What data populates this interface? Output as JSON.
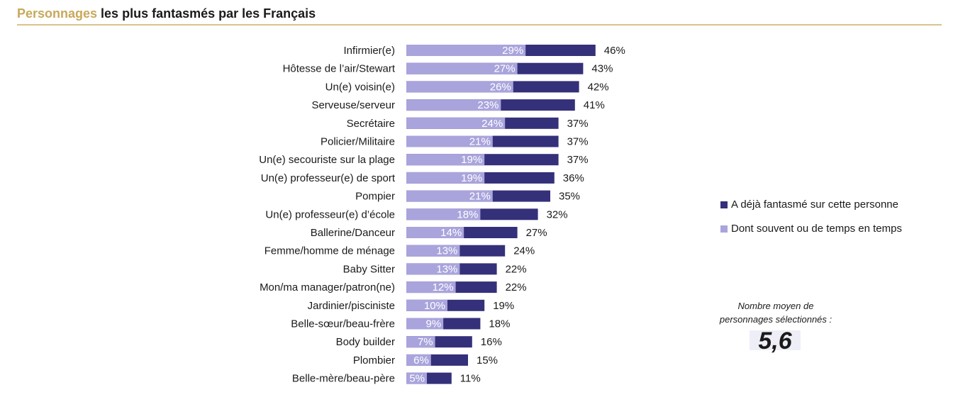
{
  "header": {
    "title_accent": "Personnages",
    "title_rest": " les plus fantasmés par les Français"
  },
  "legend": {
    "total_label": "A déjà fantasmé sur cette personne",
    "often_label": "Dont souvent ou de temps en temps"
  },
  "average": {
    "label_line1": "Nombre moyen de",
    "label_line2": "personnages sélectionnés :",
    "value": "5,6"
  },
  "colors": {
    "total": "#34307a",
    "often": "#a9a4dc",
    "title_accent": "#c8a85a"
  },
  "chart_data": {
    "type": "bar",
    "orientation": "horizontal",
    "stacked": "overlay",
    "categories": [
      "Infirmier(e)",
      "Hôtesse de l’air/Stewart",
      "Un(e) voisin(e)",
      "Serveuse/serveur",
      "Secrétaire",
      "Policier/Militaire",
      "Un(e) secouriste sur la plage",
      "Un(e) professeur(e) de sport",
      "Pompier",
      "Un(e) professeur(e) d’école",
      "Ballerine/Danceur",
      "Femme/homme de ménage",
      "Baby Sitter",
      "Mon/ma manager/patron(ne)",
      "Jardinier/pisciniste",
      "Belle-sœur/beau-frère",
      "Body builder",
      "Plombier",
      "Belle-mère/beau-père"
    ],
    "series": [
      {
        "name": "A déjà fantasmé sur cette personne",
        "values": [
          46,
          43,
          42,
          41,
          37,
          37,
          37,
          36,
          35,
          32,
          27,
          24,
          22,
          22,
          19,
          18,
          16,
          15,
          11
        ],
        "labels": [
          "46%",
          "43%",
          "42%",
          "41%",
          "37%",
          "37%",
          "37%",
          "36%",
          "35%",
          "32%",
          "27%",
          "24%",
          "22%",
          "22%",
          "19%",
          "18%",
          "16%",
          "15%",
          "11%"
        ]
      },
      {
        "name": "Dont souvent ou de temps en temps",
        "values": [
          29,
          27,
          26,
          23,
          24,
          21,
          19,
          19,
          21,
          18,
          14,
          13,
          13,
          12,
          10,
          9,
          7,
          6,
          5
        ],
        "labels": [
          "29%",
          "27%",
          "26%",
          "23%",
          "24%",
          "21%",
          "19%",
          "19%",
          "21%",
          "18%",
          "14%",
          "13%",
          "13%",
          "12%",
          "10%",
          "9%",
          "7%",
          "6%",
          "5%"
        ]
      }
    ],
    "legend_position": "right",
    "grid": false
  }
}
